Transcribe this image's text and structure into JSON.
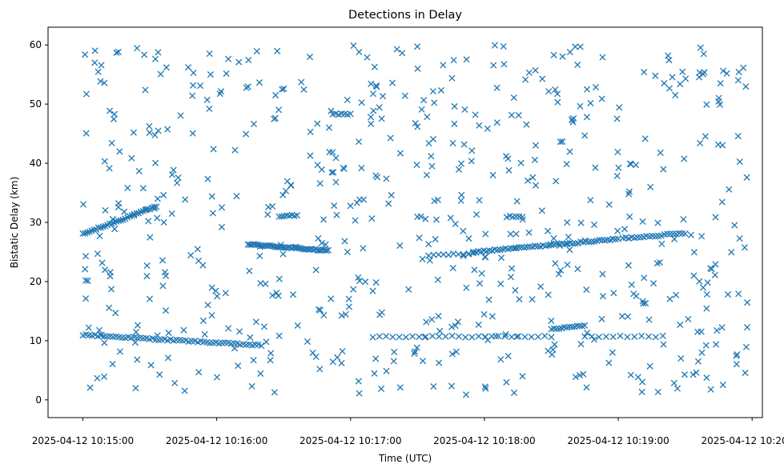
{
  "chart_data": {
    "type": "scatter",
    "title": "Detections in Delay",
    "xlabel": "Time (UTC)",
    "ylabel": "Bistatic Delay (km)",
    "x_unit": "seconds after 2025-04-12 10:15:00 UTC",
    "xlim": [
      -15.6,
      304.6
    ],
    "ylim": [
      -3.0,
      63.0
    ],
    "xticks": [
      {
        "value": 0,
        "label": "2025-04-12 10:15:00"
      },
      {
        "value": 60,
        "label": "2025-04-12 10:16:00"
      },
      {
        "value": 120,
        "label": "2025-04-12 10:17:00"
      },
      {
        "value": 180,
        "label": "2025-04-12 10:18:00"
      },
      {
        "value": 240,
        "label": "2025-04-12 10:19:00"
      },
      {
        "value": 300,
        "label": "2025-04-12 10:20:00"
      }
    ],
    "yticks": [
      0,
      10,
      20,
      30,
      40,
      50,
      60
    ],
    "marker": "x",
    "color": "#1f77b4",
    "grid": false,
    "series": [
      {
        "name": "",
        "tracks": [
          {
            "t0": 0.0,
            "t1": 33.0,
            "d0": 28.0,
            "d1": 32.7,
            "n": 34
          },
          {
            "t0": 0.0,
            "t1": 80.0,
            "d0": 11.0,
            "d1": 9.2,
            "n": 60
          },
          {
            "t0": 74.0,
            "t1": 110.0,
            "d0": 26.3,
            "d1": 25.2,
            "n": 45
          },
          {
            "t0": 175.0,
            "t1": 240.0,
            "d0": 25.0,
            "d1": 27.2,
            "n": 55
          },
          {
            "t0": 242.0,
            "t1": 270.0,
            "d0": 27.3,
            "d1": 28.2,
            "n": 22
          },
          {
            "t0": 210.0,
            "t1": 225.0,
            "d0": 12.0,
            "d1": 12.6,
            "n": 14
          },
          {
            "t0": 130.0,
            "t1": 210.0,
            "d0": 10.7,
            "d1": 10.7,
            "n": 28
          },
          {
            "t0": 225.0,
            "t1": 260.0,
            "d0": 10.7,
            "d1": 10.7,
            "n": 12
          },
          {
            "t0": 155.0,
            "t1": 175.0,
            "d0": 24.4,
            "d1": 24.8,
            "n": 10
          },
          {
            "t0": 88.0,
            "t1": 96.0,
            "d0": 31.0,
            "d1": 31.2,
            "n": 8
          },
          {
            "t0": 190.0,
            "t1": 197.0,
            "d0": 31.0,
            "d1": 31.0,
            "n": 6
          },
          {
            "t0": 112.0,
            "t1": 120.0,
            "d0": 48.3,
            "d1": 48.3,
            "n": 7
          }
        ],
        "clutter": {
          "count": 620,
          "t_min": 0.0,
          "t_max": 298.0,
          "d_min": 0.8,
          "d_max": 60.0
        }
      }
    ]
  }
}
